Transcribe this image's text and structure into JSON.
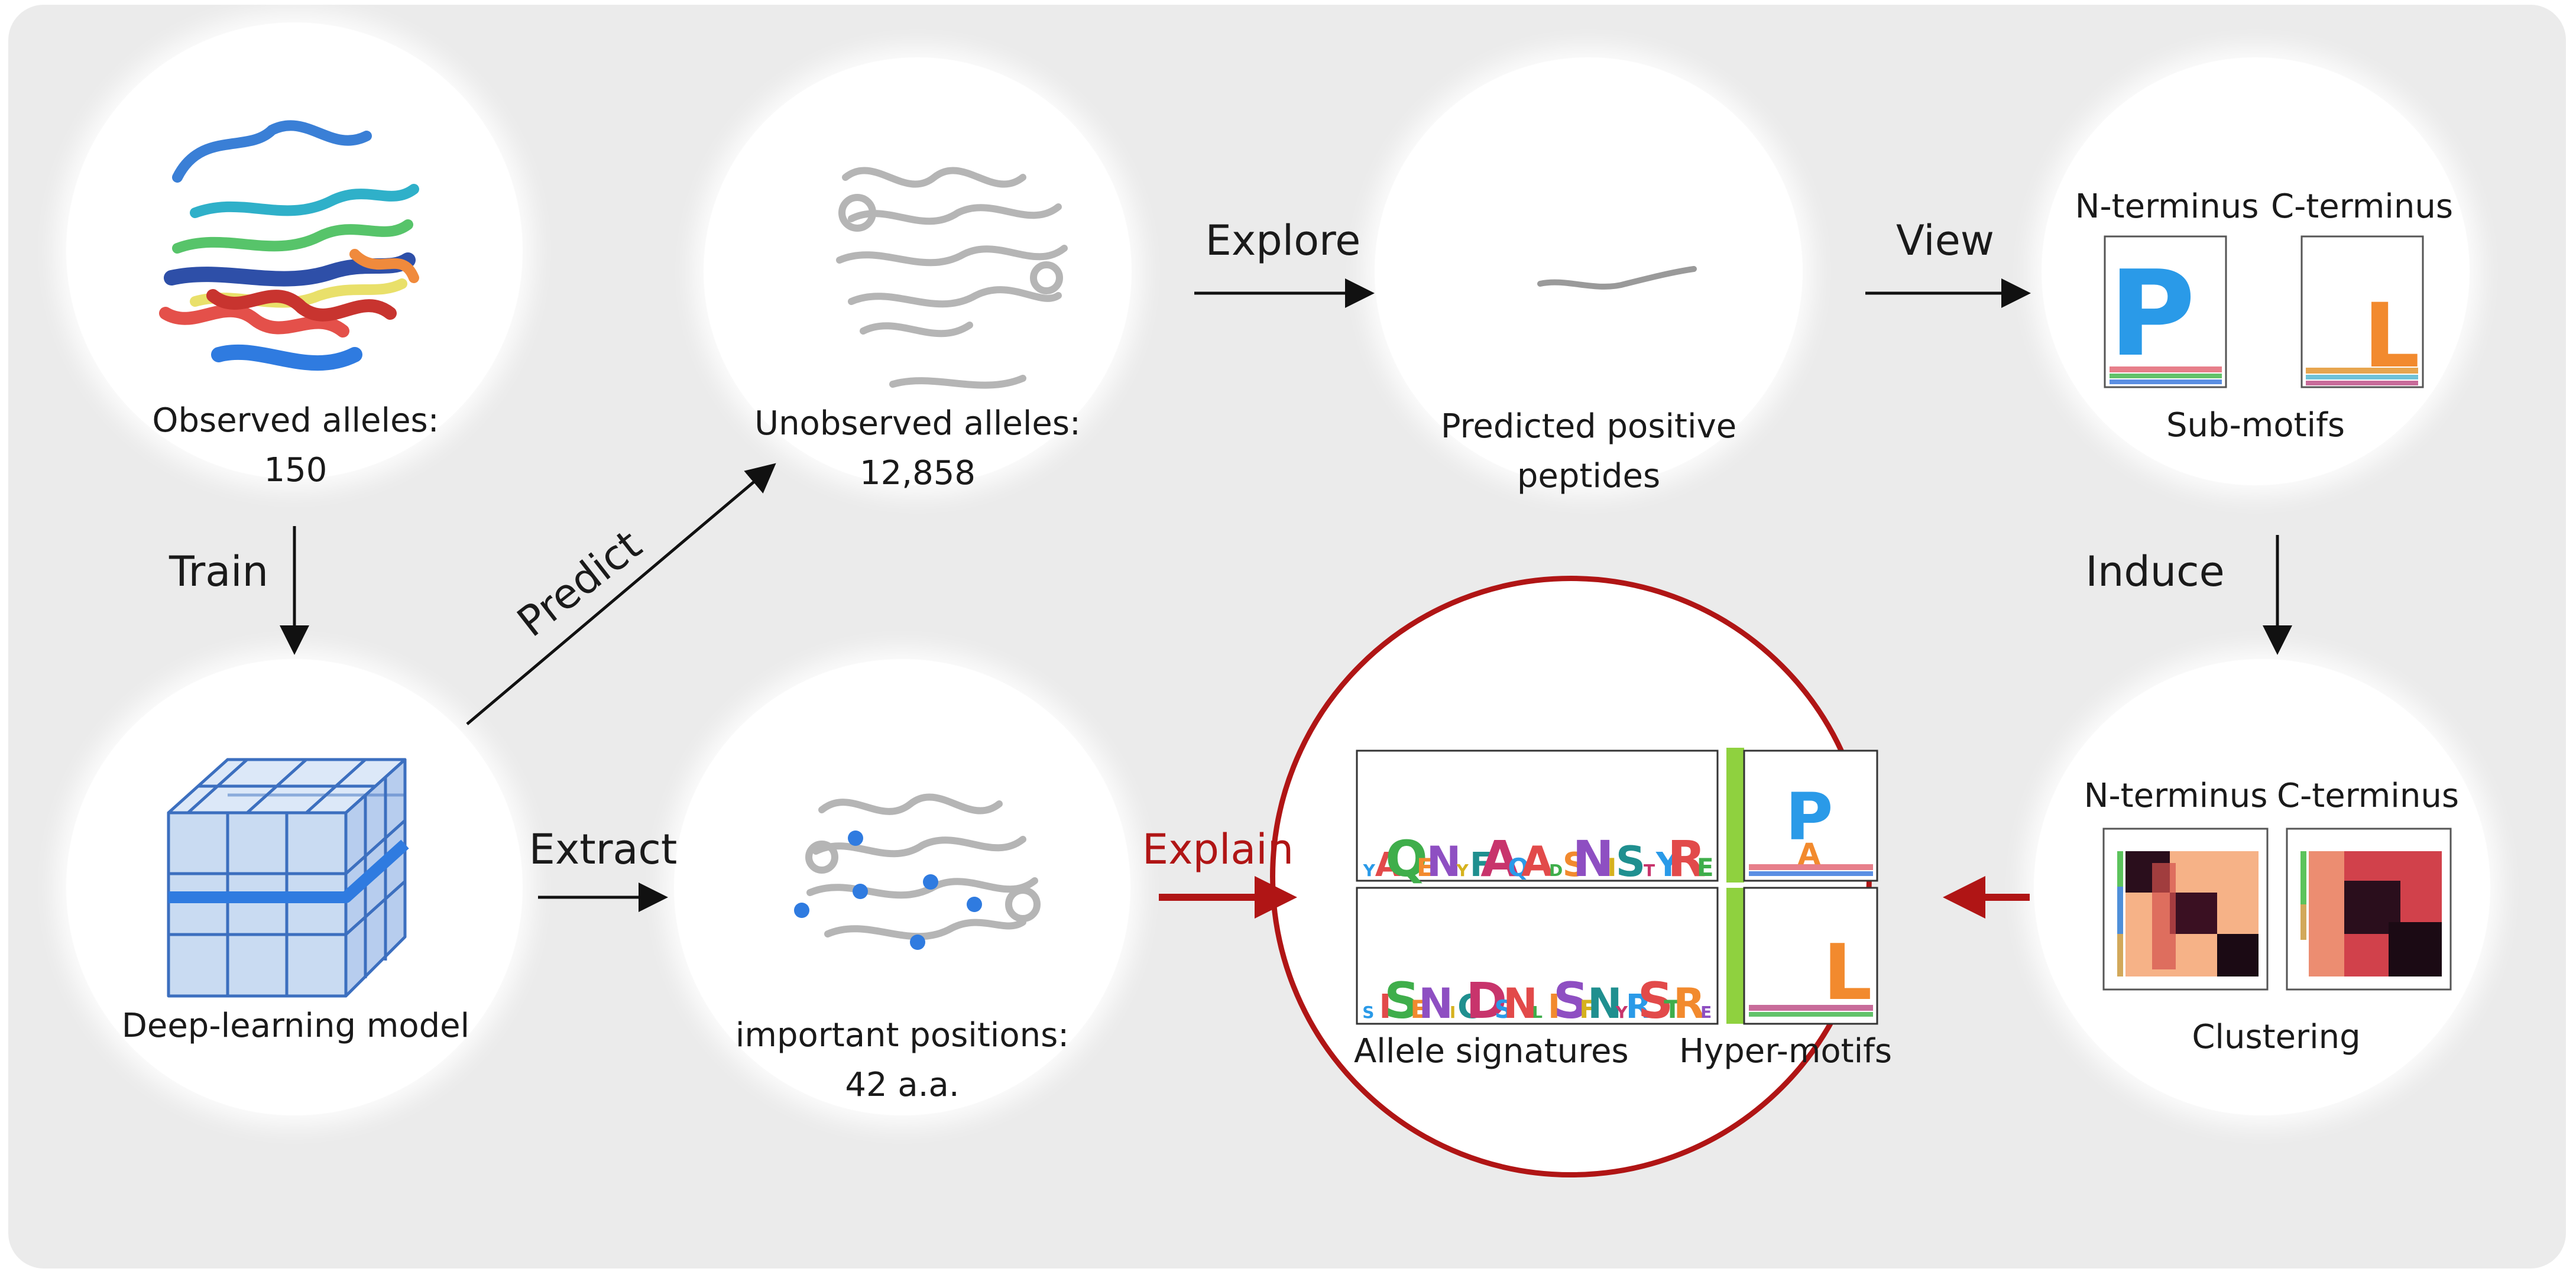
{
  "nodes": {
    "observed": {
      "line1": "Observed alleles:",
      "line2": "150"
    },
    "unobserved": {
      "line1": "Unobserved alleles:",
      "line2": "12,858"
    },
    "predicted": {
      "line1": "Predicted positive",
      "line2": "peptides"
    },
    "submotifs": {
      "n_terminus": "N-terminus",
      "c_terminus": "C-terminus",
      "caption": "Sub-motifs"
    },
    "model": {
      "caption": "Deep-learning model"
    },
    "positions": {
      "line1": "important positions:",
      "line2": "42 a.a."
    },
    "explain_panel": {
      "left_caption": "Allele signatures",
      "right_caption": "Hyper-motifs"
    },
    "clustering": {
      "n_terminus": "N-terminus",
      "c_terminus": "C-terminus",
      "caption": "Clustering"
    }
  },
  "edges": {
    "train": "Train",
    "predict": "Predict",
    "explore": "Explore",
    "view": "View",
    "induce": "Induce",
    "extract": "Extract",
    "explain": "Explain"
  },
  "logos": {
    "submotif_n_letter": "P",
    "submotif_c_letter": "L",
    "hyper_n_letters": [
      "P",
      "A"
    ],
    "hyper_c_letters": [
      "L"
    ],
    "signature_top": [
      "Y",
      "A",
      "Q",
      "E",
      "N",
      "Y",
      "F",
      "A",
      "Q",
      "A",
      "D",
      "S",
      "N",
      "I",
      "S",
      "T",
      "Y",
      "R",
      "E"
    ],
    "signature_bottom": [
      "S",
      "I",
      "S",
      "E",
      "N",
      "I",
      "C",
      "D",
      "S",
      "N",
      "L",
      "I",
      "S",
      "F",
      "N",
      "Y",
      "R",
      "S",
      "T",
      "R",
      "E"
    ]
  },
  "colors": {
    "panel_bg": "#ebebeb",
    "circle_bg": "#ffffff",
    "explain_accent": "#b01515",
    "position_dot": "#2f7be0",
    "cube_face": "#c9dbf2",
    "cube_line": "#3c6fbf",
    "cube_band": "#2f7be0",
    "hypermotif_bar": "#8fd13f"
  }
}
